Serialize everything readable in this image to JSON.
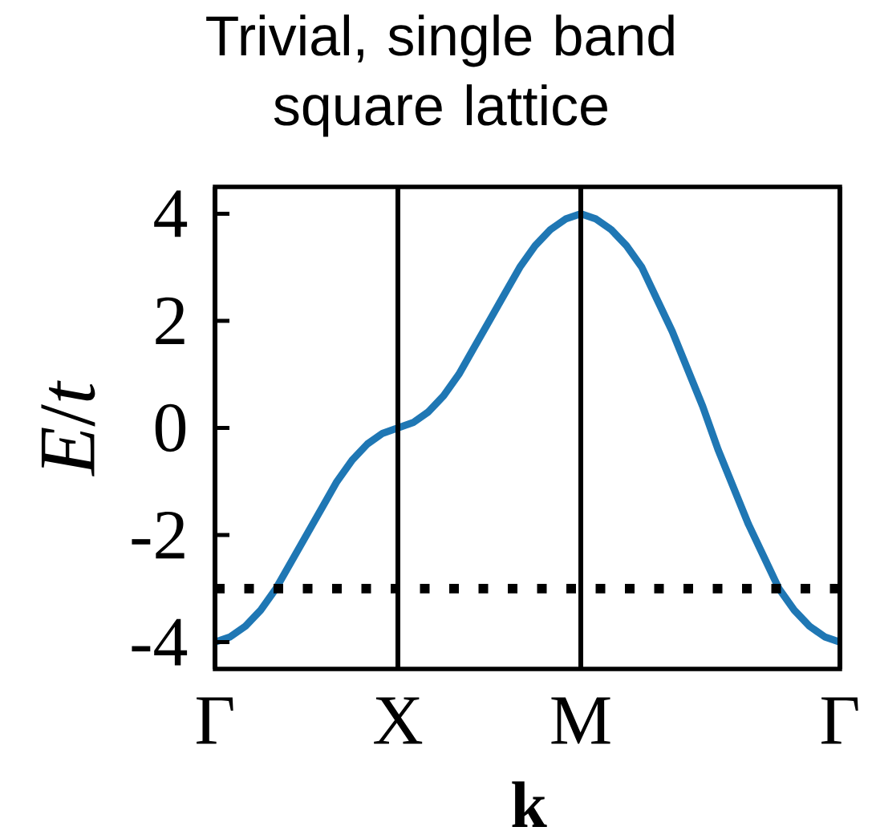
{
  "chart_data": {
    "type": "line",
    "title": "Trivial, single band square lattice",
    "xlabel": "k",
    "ylabel": "*E*/*t*",
    "categories": [
      "Γ",
      null,
      null,
      null,
      null,
      null,
      null,
      null,
      null,
      null,
      null,
      null,
      "X",
      null,
      null,
      null,
      null,
      null,
      null,
      null,
      null,
      null,
      null,
      null,
      "M",
      null,
      null,
      null,
      null,
      null,
      null,
      null,
      null,
      null,
      null,
      null,
      null,
      null,
      null,
      null,
      null,
      "Γ"
    ],
    "series": [
      {
        "color": "#1f77b4",
        "values": [
          -4,
          -3.9,
          -3.7,
          -3.4,
          -3,
          -2.5,
          -2,
          -1.5,
          -1,
          -0.6,
          -0.3,
          -0.1,
          0,
          0.1,
          0.3,
          0.6,
          1,
          1.5,
          2,
          2.5,
          3,
          3.4,
          3.7,
          3.9,
          4,
          3.9,
          3.7,
          3.4,
          3,
          2.4,
          1.8,
          1.1,
          0.4,
          -0.4,
          -1.1,
          -1.8,
          -2.4,
          -3,
          -3.4,
          -3.7,
          -3.9,
          -4
        ]
      }
    ],
    "ylim": [
      -4.5,
      4.5
    ],
    "yticks": [
      -4,
      -2,
      0,
      2,
      4
    ],
    "grid": "x",
    "ref_lines": [
      {
        "axis": "y",
        "value": -3,
        "color": "#000000",
        "line_style": "dotted"
      }
    ]
  }
}
